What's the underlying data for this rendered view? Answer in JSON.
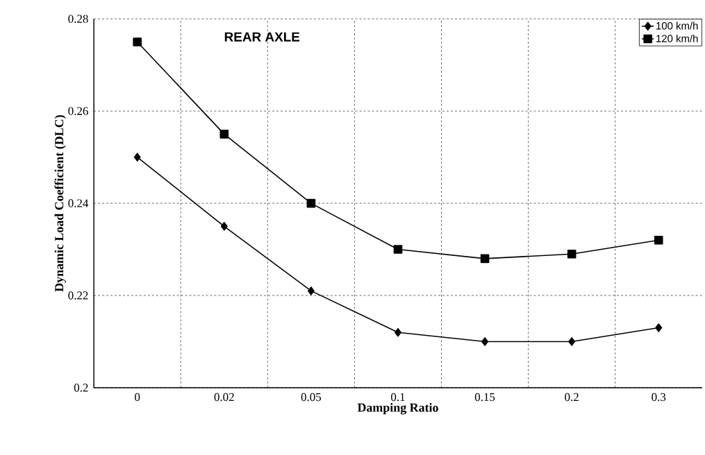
{
  "chart_data": {
    "type": "line",
    "xlabel": "Damping Ratio",
    "ylabel": "Dynamic Load Coefficient (DLC)",
    "categories": [
      "0",
      "0.02",
      "0.05",
      "0.1",
      "0.15",
      "0.2",
      "0.3"
    ],
    "series": [
      {
        "name": "100 km/h",
        "color": "#000000",
        "marker": "diamond",
        "values": [
          0.25,
          0.235,
          0.221,
          0.212,
          0.21,
          0.21,
          0.213
        ]
      },
      {
        "name": "120 km/h",
        "color": "#000000",
        "marker": "square",
        "values": [
          0.275,
          0.255,
          0.24,
          0.23,
          0.228,
          0.229,
          0.232
        ]
      }
    ],
    "ylim": [
      0.2,
      0.28
    ],
    "yticks": [
      0.2,
      0.22,
      0.24,
      0.26,
      0.28
    ],
    "grid": true,
    "legend": "top right",
    "line_style": "solid",
    "annotations": [
      "REAR AXLE"
    ]
  }
}
